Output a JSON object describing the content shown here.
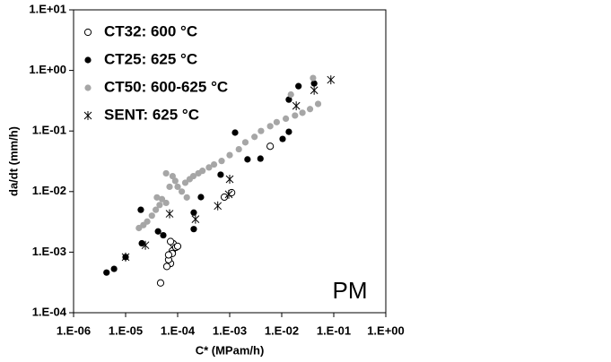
{
  "chart_data": {
    "type": "scatter",
    "log_x": true,
    "log_y": true,
    "x_label": "C* (MPam/h)",
    "y_label": "da/dt (mm/h)",
    "annotation": "PM",
    "legend": "upper left",
    "xlim": [
      1e-06,
      1
    ],
    "ylim": [
      0.0001,
      10
    ],
    "xticks": [
      {
        "value": 1e-06,
        "label": "1.E-06"
      },
      {
        "value": 1e-05,
        "label": "1.E-05"
      },
      {
        "value": 0.0001,
        "label": "1.E-04"
      },
      {
        "value": 0.001,
        "label": "1.E-03"
      },
      {
        "value": 0.01,
        "label": "1.E-02"
      },
      {
        "value": 0.1,
        "label": "1.E-01"
      },
      {
        "value": 1,
        "label": "1.E+00"
      }
    ],
    "yticks": [
      {
        "value": 0.0001,
        "label": "1.E-04"
      },
      {
        "value": 0.001,
        "label": "1.E-03"
      },
      {
        "value": 0.01,
        "label": "1.E-02"
      },
      {
        "value": 0.1,
        "label": "1.E-01"
      },
      {
        "value": 1,
        "label": "1.E+00"
      },
      {
        "value": 10,
        "label": "1.E+01"
      }
    ],
    "series": [
      {
        "name": "CT32: 600 °C",
        "color": "#000000",
        "marker": "open-circle",
        "x": [
          4.7e-05,
          7.3e-05,
          6.2e-05,
          6.7e-05,
          7.9e-05,
          8.2e-05,
          7.3e-05,
          9.2e-05,
          0.0001,
          7.9e-05,
          0.006,
          0.00079,
          0.00109,
          6.7e-05
        ],
        "values": [
          0.00031,
          0.00065,
          0.00058,
          0.00075,
          0.00105,
          0.00138,
          0.0015,
          0.0012,
          0.00125,
          0.00095,
          0.056,
          0.0081,
          0.0096,
          0.0009
        ]
      },
      {
        "name": "CT25: 625 °C",
        "color": "#000000",
        "marker": "filled-circle",
        "x": [
          4.3e-06,
          6e-06,
          1e-05,
          1.96e-05,
          2.05e-05,
          4.2e-05,
          5.3e-05,
          0.000204,
          0.000204,
          0.00028,
          0.00067,
          0.0022,
          0.0039,
          0.0104,
          0.0137,
          0.00127,
          0.0137,
          0.021,
          0.042
        ],
        "values": [
          0.00046,
          0.00053,
          0.00083,
          0.005,
          0.0014,
          0.0022,
          0.0019,
          0.0024,
          0.0045,
          0.0081,
          0.019,
          0.034,
          0.035,
          0.074,
          0.097,
          0.094,
          0.33,
          0.55,
          0.61
        ]
      },
      {
        "name": "CT50: 600-625 °C",
        "color": "#a6a6a6",
        "marker": "filled-circle",
        "x": [
          1.8e-05,
          2.2e-05,
          2.6e-05,
          3.2e-05,
          3.8e-05,
          4.5e-05,
          5e-05,
          6e-05,
          7e-05,
          8e-05,
          9e-05,
          0.0001,
          0.00012,
          0.00014,
          0.00017,
          0.0002,
          0.00025,
          0.0003,
          0.0004,
          0.0005,
          0.0007,
          0.001,
          0.0015,
          0.002,
          0.003,
          0.004,
          0.006,
          0.008,
          0.012,
          0.018,
          0.025,
          0.035,
          0.05,
          0.04,
          0.015,
          6e-05,
          4e-05,
          0.00015
        ],
        "values": [
          0.0025,
          0.0028,
          0.0032,
          0.004,
          0.005,
          0.006,
          0.0075,
          0.0065,
          0.012,
          0.018,
          0.015,
          0.012,
          0.01,
          0.014,
          0.016,
          0.018,
          0.02,
          0.022,
          0.025,
          0.028,
          0.032,
          0.04,
          0.05,
          0.065,
          0.08,
          0.1,
          0.12,
          0.14,
          0.16,
          0.18,
          0.2,
          0.23,
          0.28,
          0.75,
          0.4,
          0.02,
          0.008,
          0.008
        ]
      },
      {
        "name": "SENT: 625 °C",
        "color": "#000000",
        "marker": "asterisk",
        "x": [
          1e-05,
          2.4e-05,
          7e-05,
          0.00022,
          0.00059,
          0.00096,
          0.001,
          0.019,
          0.042,
          0.088
        ],
        "values": [
          0.00083,
          0.0013,
          0.0043,
          0.0035,
          0.0058,
          0.009,
          0.016,
          0.26,
          0.47,
          0.7
        ]
      }
    ]
  }
}
